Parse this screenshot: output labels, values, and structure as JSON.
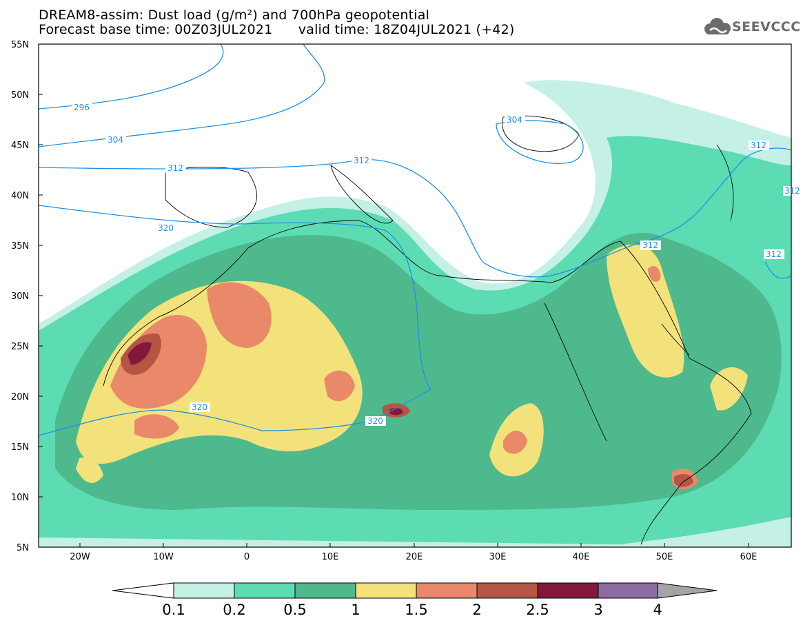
{
  "header": {
    "line1": "DREAM8-assim: Dust load (g/m²) and 700hPa geopotential",
    "line2": "Forecast base time: 00Z03JUL2021      valid time: 18Z04JUL2021 (+42)"
  },
  "logo": {
    "text": "SEEVCCC",
    "icon": "cloud-icon"
  },
  "map": {
    "type": "heatmap",
    "variable": "Dust load",
    "units": "g/m²",
    "overlay": "700hPa geopotential",
    "lon_range": [
      -25,
      65
    ],
    "lat_range": [
      5,
      55
    ],
    "lat_ticks": [
      "55N",
      "50N",
      "45N",
      "40N",
      "35N",
      "30N",
      "25N",
      "20N",
      "15N",
      "10N",
      "5N"
    ],
    "lon_ticks": [
      "20W",
      "10W",
      "0",
      "10E",
      "20E",
      "30E",
      "40E",
      "50E",
      "60E"
    ],
    "contour_labels": [
      "296",
      "304",
      "312",
      "312",
      "320",
      "320",
      "320",
      "304",
      "312",
      "312",
      "312",
      "312"
    ],
    "contour_color": "#1e90e8"
  },
  "colorbar": {
    "labels": [
      "0.1",
      "0.2",
      "0.5",
      "1",
      "1.5",
      "2",
      "2.5",
      "3",
      "4"
    ],
    "colors": [
      "#c4f0e6",
      "#5ddcb3",
      "#4eb98c",
      "#f3e27b",
      "#e9896a",
      "#b55645",
      "#84183a",
      "#8d6a9f"
    ],
    "under_color": "#ffffff",
    "over_color": "#a4a4a4"
  }
}
